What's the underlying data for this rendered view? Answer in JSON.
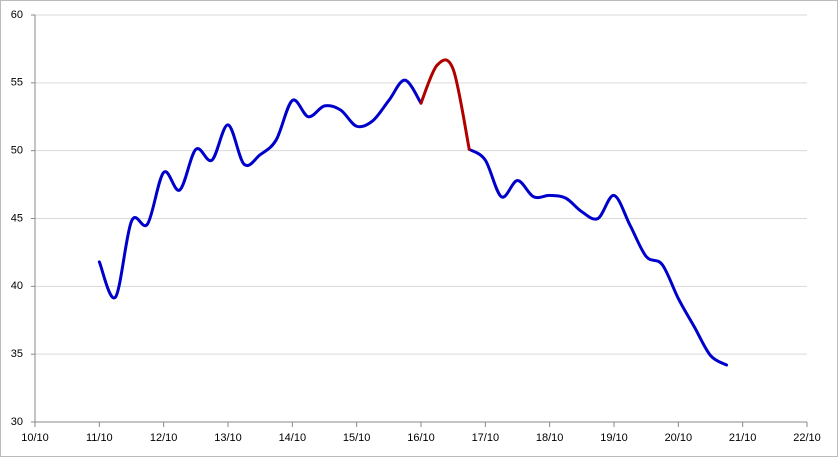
{
  "chart_data": {
    "type": "line",
    "x": [
      11,
      11.25,
      11.5,
      11.75,
      12,
      12.25,
      12.5,
      12.75,
      13,
      13.25,
      13.5,
      13.75,
      14,
      14.25,
      14.5,
      14.75,
      15,
      15.25,
      15.5,
      15.75,
      16,
      16.25,
      16.5,
      16.75,
      17,
      17.25,
      17.5,
      17.75,
      18,
      18.25,
      18.5,
      18.75,
      19,
      19.25,
      19.5,
      19.75,
      20,
      20.25,
      20.5,
      20.75
    ],
    "series": [
      {
        "color": "#0000cc",
        "values": [
          41.8,
          39.2,
          44.8,
          44.6,
          48.4,
          47.1,
          50.1,
          49.3,
          51.9,
          49.0,
          49.7,
          50.8,
          53.7,
          52.5,
          53.3,
          53.0,
          51.8,
          52.2,
          53.7,
          55.2,
          53.5,
          null,
          null,
          50.1,
          49.3,
          46.6,
          47.8,
          46.6,
          46.7,
          46.5,
          45.5,
          45.0,
          46.7,
          44.5,
          42.2,
          41.6,
          39.1,
          37.0,
          34.9,
          34.2
        ]
      },
      {
        "color": "#b00000",
        "values": [
          null,
          null,
          null,
          null,
          null,
          null,
          null,
          null,
          null,
          null,
          null,
          null,
          null,
          null,
          null,
          null,
          null,
          null,
          null,
          null,
          53.5,
          56.3,
          56.0,
          50.1,
          null,
          null,
          null,
          null,
          null,
          null,
          null,
          null,
          null,
          null,
          null,
          null,
          null,
          null,
          null,
          null
        ]
      }
    ],
    "xlim": [
      10,
      22
    ],
    "xticks": [
      {
        "value": 10,
        "label": "10/10"
      },
      {
        "value": 11,
        "label": "11/10"
      },
      {
        "value": 12,
        "label": "12/10"
      },
      {
        "value": 13,
        "label": "13/10"
      },
      {
        "value": 14,
        "label": "14/10"
      },
      {
        "value": 15,
        "label": "15/10"
      },
      {
        "value": 16,
        "label": "16/10"
      },
      {
        "value": 17,
        "label": "17/10"
      },
      {
        "value": 18,
        "label": "18/10"
      },
      {
        "value": 19,
        "label": "19/10"
      },
      {
        "value": 20,
        "label": "20/10"
      },
      {
        "value": 21,
        "label": "21/10"
      },
      {
        "value": 22,
        "label": "22/10"
      }
    ],
    "ylim": [
      30,
      60
    ],
    "yticks": [
      30,
      35,
      40,
      45,
      50,
      55,
      60
    ],
    "grid": true
  }
}
